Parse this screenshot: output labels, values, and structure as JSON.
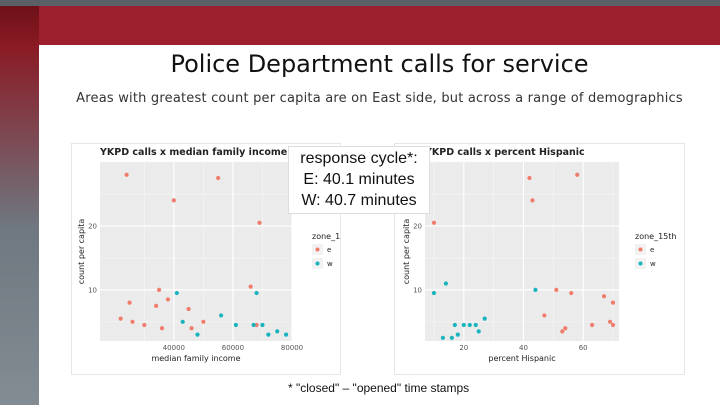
{
  "slide": {
    "title": "Police Department calls for service",
    "subtitle": "Areas with greatest count per capita are on East side, but across a range of demographics"
  },
  "callout": {
    "line1": "response cycle*:",
    "line2": "E: 40.1 minutes",
    "line3": "W: 40.7 minutes"
  },
  "footnote": "* \"closed\" – \"opened\" time stamps",
  "colors": {
    "banner": "#9b1f2d",
    "e": "#f07c6c",
    "w": "#18b4be"
  },
  "chart_data": [
    {
      "type": "scatter",
      "title": "YKPD calls x median family income",
      "xlabel": "median family income",
      "ylabel": "count per capita",
      "xlim": [
        15000,
        80000
      ],
      "ylim": [
        2,
        30
      ],
      "xticks": [
        {
          "value": 40000,
          "label": "40000"
        },
        {
          "value": 60000,
          "label": "60000"
        },
        {
          "value": 80000,
          "label": "80000"
        }
      ],
      "yticks": [
        {
          "value": 10,
          "label": "10"
        },
        {
          "value": 20,
          "label": "20"
        }
      ],
      "grid": true,
      "legend": {
        "title": "zone_15th",
        "position": "right",
        "entries": [
          "e",
          "w"
        ]
      },
      "series": [
        {
          "name": "e",
          "points": [
            [
              24000,
              28
            ],
            [
              55000,
              27.5
            ],
            [
              40000,
              24
            ],
            [
              69000,
              20.5
            ],
            [
              22000,
              5.5
            ],
            [
              25000,
              8
            ],
            [
              26000,
              5
            ],
            [
              30000,
              4.5
            ],
            [
              34000,
              7.5
            ],
            [
              35000,
              10
            ],
            [
              36000,
              4
            ],
            [
              38000,
              8.5
            ],
            [
              45000,
              7
            ],
            [
              46000,
              4
            ],
            [
              50000,
              5
            ],
            [
              66000,
              10.5
            ],
            [
              68000,
              4.5
            ]
          ]
        },
        {
          "name": "w",
          "points": [
            [
              41000,
              9.5
            ],
            [
              43000,
              5
            ],
            [
              48000,
              3
            ],
            [
              56000,
              6
            ],
            [
              61000,
              4.5
            ],
            [
              67000,
              4.5
            ],
            [
              68000,
              9.5
            ],
            [
              70000,
              4.5
            ],
            [
              72000,
              3
            ],
            [
              75000,
              3.5
            ],
            [
              78000,
              3
            ]
          ]
        }
      ]
    },
    {
      "type": "scatter",
      "title": "YKPD calls x percent Hispanic",
      "xlabel": "percent Hispanic",
      "ylabel": "count per capita",
      "xlim": [
        7,
        72
      ],
      "ylim": [
        2,
        30
      ],
      "xticks": [
        {
          "value": 20,
          "label": "20"
        },
        {
          "value": 40,
          "label": "40"
        },
        {
          "value": 60,
          "label": "60"
        }
      ],
      "yticks": [
        {
          "value": 10,
          "label": "10"
        },
        {
          "value": 20,
          "label": "20"
        }
      ],
      "grid": true,
      "legend": {
        "title": "zone_15th",
        "position": "right",
        "entries": [
          "e",
          "w"
        ]
      },
      "series": [
        {
          "name": "e",
          "points": [
            [
              42,
              27.5
            ],
            [
              58,
              28
            ],
            [
              43,
              24
            ],
            [
              10,
              20.5
            ],
            [
              51,
              10
            ],
            [
              56,
              9.5
            ],
            [
              63,
              4.5
            ],
            [
              67,
              9
            ],
            [
              70,
              8
            ],
            [
              70,
              4.5
            ],
            [
              54,
              4
            ],
            [
              69,
              5
            ],
            [
              53,
              3.5
            ],
            [
              47,
              6
            ]
          ]
        },
        {
          "name": "w",
          "points": [
            [
              10,
              9.5
            ],
            [
              14,
              11
            ],
            [
              13,
              2.5
            ],
            [
              17,
              4.5
            ],
            [
              18,
              3
            ],
            [
              20,
              4.5
            ],
            [
              22,
              4.5
            ],
            [
              24,
              4.5
            ],
            [
              25,
              3.5
            ],
            [
              27,
              5.5
            ],
            [
              44,
              10
            ],
            [
              16,
              2.5
            ]
          ]
        }
      ]
    }
  ]
}
